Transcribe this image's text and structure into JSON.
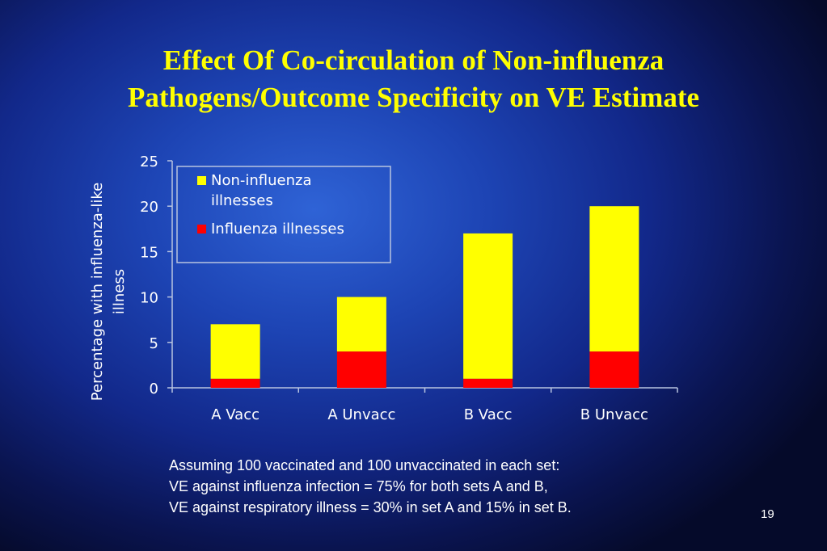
{
  "slide": {
    "title_line1": "Effect Of Co-circulation of Non-influenza",
    "title_line2": "Pathogens/Outcome Specificity on VE Estimate",
    "notes": [
      "Assuming 100 vaccinated and 100 unvaccinated in each set:",
      "VE against influenza infection = 75% for both sets A and B,",
      "VE against respiratory illness = 30% in set A and 15% in set B."
    ],
    "page_number": "19"
  },
  "chart_data": {
    "type": "bar",
    "stacked": true,
    "categories": [
      "A Vacc",
      "A Unvacc",
      "B Vacc",
      "B Unvacc"
    ],
    "series": [
      {
        "name": "Influenza illnesses",
        "values": [
          1,
          4,
          1,
          4
        ],
        "color": "#ff0000"
      },
      {
        "name": "Non-influenza illnesses",
        "values": [
          6,
          6,
          16,
          16
        ],
        "color": "#ffff00"
      }
    ],
    "ylabel": "Percentage with influenza-like illness",
    "ylim": [
      0,
      25
    ],
    "yticks": [
      0,
      5,
      10,
      15,
      20,
      25
    ],
    "legend_position": "top-left",
    "legend_entries": [
      "Non-influenza illnesses",
      "Influenza illnesses"
    ],
    "grid": false
  }
}
